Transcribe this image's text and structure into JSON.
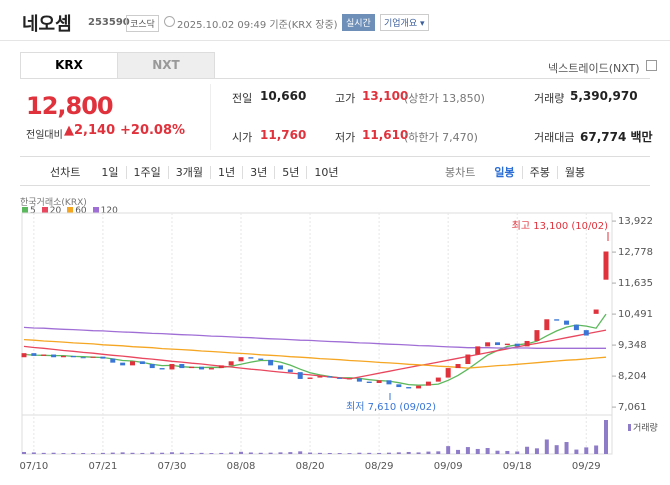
{
  "header": {
    "name": "네오셈",
    "code": "253590",
    "market": "코스닥",
    "timestamp": "2025.10.02 09:49 기준(KRX 장중)",
    "realtime": "실시간",
    "company_info": "기업개요"
  },
  "tabs": [
    "KRX",
    "NXT"
  ],
  "nxt_link": "넥스트레이드(NXT)",
  "price": {
    "current": "12,800",
    "change_label": "전일대비",
    "change": "2,140",
    "change_pct": "+20.08%"
  },
  "stats": [
    [
      {
        "label": "전일",
        "value": "10,660"
      },
      {
        "label": "고가",
        "value": "13,100",
        "note": "(상한가 13,850)"
      },
      {
        "label": "거래량",
        "value": "5,390,970"
      }
    ],
    [
      {
        "label": "시가",
        "value": "11,760"
      },
      {
        "label": "저가",
        "value": "11,610",
        "note": "(하한가 7,470)"
      },
      {
        "label": "거래대금",
        "value": "67,774 백만"
      }
    ]
  ],
  "periods": {
    "line_label": "선차트",
    "line": [
      "1일",
      "1주일",
      "3개월",
      "1년",
      "3년",
      "5년",
      "10년"
    ],
    "candle_label": "봉차트",
    "candle": [
      "일봉",
      "주봉",
      "월봉"
    ]
  },
  "chart_data": {
    "type": "candlestick",
    "source": "한국거래소(KRX)",
    "categories": [
      null,
      "07/10",
      null,
      null,
      null,
      null,
      null,
      null,
      "07/21",
      null,
      null,
      null,
      null,
      null,
      null,
      "07/30",
      null,
      null,
      null,
      null,
      null,
      null,
      "08/08",
      null,
      null,
      null,
      null,
      null,
      null,
      "08/20",
      null,
      null,
      null,
      null,
      null,
      null,
      "08/29",
      null,
      null,
      null,
      null,
      null,
      null,
      "09/09",
      null,
      null,
      null,
      null,
      null,
      null,
      "09/18",
      null,
      null,
      null,
      null,
      null,
      null,
      "09/29",
      null,
      null
    ],
    "open": [
      8900,
      9050,
      8950,
      9000,
      8900,
      8950,
      8900,
      8880,
      8920,
      8850,
      8700,
      8600,
      8750,
      8650,
      8500,
      8450,
      8650,
      8500,
      8550,
      8450,
      8500,
      8600,
      8750,
      8900,
      8850,
      8800,
      8600,
      8450,
      8350,
      8100,
      8150,
      8200,
      8150,
      8100,
      8120,
      8000,
      7950,
      8050,
      7900,
      7800,
      7750,
      7850,
      8000,
      8150,
      8500,
      8650,
      9000,
      9300,
      9450,
      9350,
      9400,
      9300,
      9500,
      9900,
      10300,
      10250,
      10100,
      9900,
      10500,
      11760
    ],
    "close": [
      9050,
      8950,
      9000,
      8900,
      8950,
      8900,
      8880,
      8920,
      8850,
      8700,
      8600,
      8750,
      8650,
      8500,
      8450,
      8650,
      8500,
      8550,
      8450,
      8500,
      8600,
      8750,
      8900,
      8850,
      8800,
      8600,
      8450,
      8350,
      8100,
      8150,
      8200,
      8150,
      8100,
      8120,
      8000,
      7950,
      8050,
      7900,
      7800,
      7750,
      7850,
      8000,
      8150,
      8500,
      8650,
      9000,
      9300,
      9450,
      9350,
      9400,
      9300,
      9500,
      9900,
      10300,
      10250,
      10100,
      9900,
      9700,
      10660,
      12800
    ],
    "up_color": "#e0323c",
    "down_color": "#3a76d6",
    "series": [
      {
        "name": "5",
        "color": "#5cb85c",
        "values": [
          9000,
          8980,
          8970,
          8960,
          8960,
          8930,
          8920,
          8900,
          8890,
          8840,
          8780,
          8760,
          8710,
          8640,
          8590,
          8600,
          8550,
          8530,
          8520,
          8530,
          8520,
          8570,
          8640,
          8720,
          8780,
          8780,
          8720,
          8610,
          8460,
          8330,
          8250,
          8190,
          8140,
          8140,
          8120,
          8070,
          8040,
          8020,
          7960,
          7890,
          7870,
          7880,
          7910,
          8050,
          8230,
          8460,
          8720,
          8980,
          9150,
          9300,
          9360,
          9400,
          9490,
          9690,
          9870,
          10010,
          10090,
          10050,
          9970,
          10490
        ]
      },
      {
        "name": "20",
        "color": "#e8475e",
        "values": [
          9300,
          9260,
          9230,
          9190,
          9150,
          9120,
          9080,
          9050,
          9010,
          8970,
          8940,
          8900,
          8860,
          8830,
          8790,
          8750,
          8720,
          8680,
          8650,
          8610,
          8570,
          8540,
          8500,
          8460,
          8430,
          8390,
          8350,
          8320,
          8280,
          8250,
          8210,
          8170,
          8140,
          8100,
          8170,
          8240,
          8310,
          8380,
          8450,
          8520,
          8590,
          8650,
          8720,
          8790,
          8860,
          8930,
          9000,
          9070,
          9140,
          9210,
          9280,
          9350,
          9410,
          9480,
          9550,
          9620,
          9690,
          9760,
          9830,
          9900
        ]
      },
      {
        "name": "60",
        "color": "#f5a623",
        "values": [
          9550,
          9530,
          9500,
          9480,
          9460,
          9430,
          9410,
          9390,
          9360,
          9340,
          9320,
          9290,
          9270,
          9250,
          9220,
          9200,
          9180,
          9160,
          9130,
          9110,
          9090,
          9060,
          9040,
          9020,
          8990,
          8970,
          8950,
          8920,
          8900,
          8880,
          8850,
          8830,
          8810,
          8780,
          8760,
          8740,
          8710,
          8690,
          8670,
          8640,
          8620,
          8600,
          8570,
          8550,
          8530,
          8500,
          8530,
          8560,
          8590,
          8610,
          8640,
          8670,
          8700,
          8730,
          8760,
          8790,
          8810,
          8840,
          8870,
          8900
        ]
      },
      {
        "name": "120",
        "color": "#a06fd6",
        "values": [
          10000,
          9980,
          9970,
          9950,
          9930,
          9920,
          9900,
          9880,
          9870,
          9850,
          9830,
          9820,
          9800,
          9780,
          9770,
          9750,
          9730,
          9720,
          9700,
          9680,
          9670,
          9650,
          9630,
          9620,
          9600,
          9580,
          9570,
          9550,
          9530,
          9520,
          9500,
          9480,
          9470,
          9450,
          9430,
          9420,
          9400,
          9380,
          9370,
          9350,
          9330,
          9320,
          9300,
          9280,
          9270,
          9250,
          9250,
          9250,
          9240,
          9240,
          9240,
          9240,
          9230,
          9230,
          9230,
          9230,
          9230,
          9230,
          9230,
          9230
        ]
      }
    ],
    "ylim": [
      6880,
      14220
    ],
    "yticks": [
      {
        "value": 7061,
        "label": "7,061"
      },
      {
        "value": 8204,
        "label": "8,204"
      },
      {
        "value": 9348,
        "label": "9,348"
      },
      {
        "value": 10491,
        "label": "10,491"
      },
      {
        "value": 11635,
        "label": "11,635"
      },
      {
        "value": 12778,
        "label": "12,778"
      },
      {
        "value": 13922,
        "label": "13,922"
      }
    ],
    "high_label": "최고 13,100 (10/02)",
    "low_label": "최저 7,610 (09/02)",
    "volume_label": "거래량",
    "volume_color": "#8f7cc8",
    "volume": [
      320000,
      250000,
      180000,
      200000,
      150000,
      170000,
      160000,
      140000,
      180000,
      220000,
      260000,
      190000,
      170000,
      240000,
      200000,
      280000,
      210000,
      160000,
      180000,
      150000,
      170000,
      230000,
      350000,
      240000,
      190000,
      210000,
      260000,
      300000,
      420000,
      230000,
      180000,
      160000,
      150000,
      140000,
      200000,
      180000,
      170000,
      210000,
      260000,
      320000,
      250000,
      380000,
      420000,
      1250000,
      650000,
      1100000,
      800000,
      950000,
      520000,
      480000,
      400000,
      1150000,
      900000,
      2300000,
      1400000,
      1900000,
      700000,
      1050000,
      1350000,
      5390970
    ]
  }
}
